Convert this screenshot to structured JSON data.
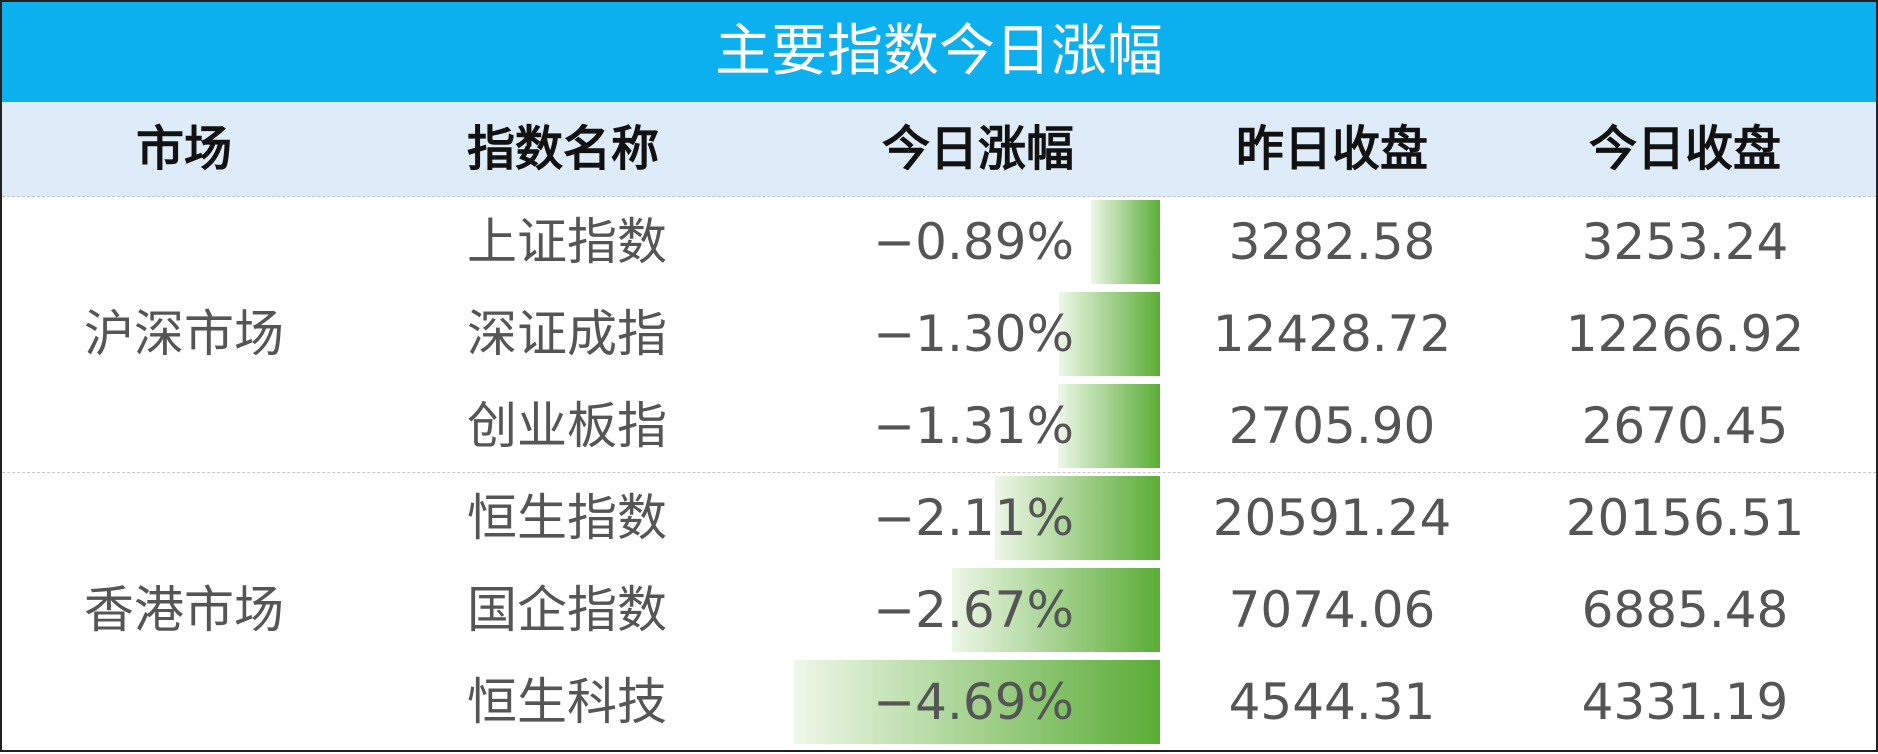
{
  "title": "主要指数今日涨幅",
  "header": [
    "市场",
    "指数名称",
    "今日涨幅",
    "昨日收盘",
    "今日收盘"
  ],
  "groups": [
    {
      "market": "沪深市场",
      "rows": [
        {
          "name": "上证指数",
          "change": {
            "value": -0.89,
            "label": "−0.89%"
          },
          "prev": "3282.58",
          "today": "3253.24"
        },
        {
          "name": "深证成指",
          "change": {
            "value": -1.3,
            "label": "−1.30%"
          },
          "prev": "12428.72",
          "today": "12266.92"
        },
        {
          "name": "创业板指",
          "change": {
            "value": -1.31,
            "label": "−1.31%"
          },
          "prev": "2705.90",
          "today": "2670.45"
        }
      ]
    },
    {
      "market": "香港市场",
      "rows": [
        {
          "name": "恒生指数",
          "change": {
            "value": -2.11,
            "label": "−2.11%"
          },
          "prev": "20591.24",
          "today": "20156.51"
        },
        {
          "name": "国企指数",
          "change": {
            "value": -2.67,
            "label": "−2.67%"
          },
          "prev": "7074.06",
          "today": "6885.48"
        },
        {
          "name": "恒生科技",
          "change": {
            "value": -4.69,
            "label": "−4.69%"
          },
          "prev": "4544.31",
          "today": "4331.19"
        }
      ]
    }
  ]
}
